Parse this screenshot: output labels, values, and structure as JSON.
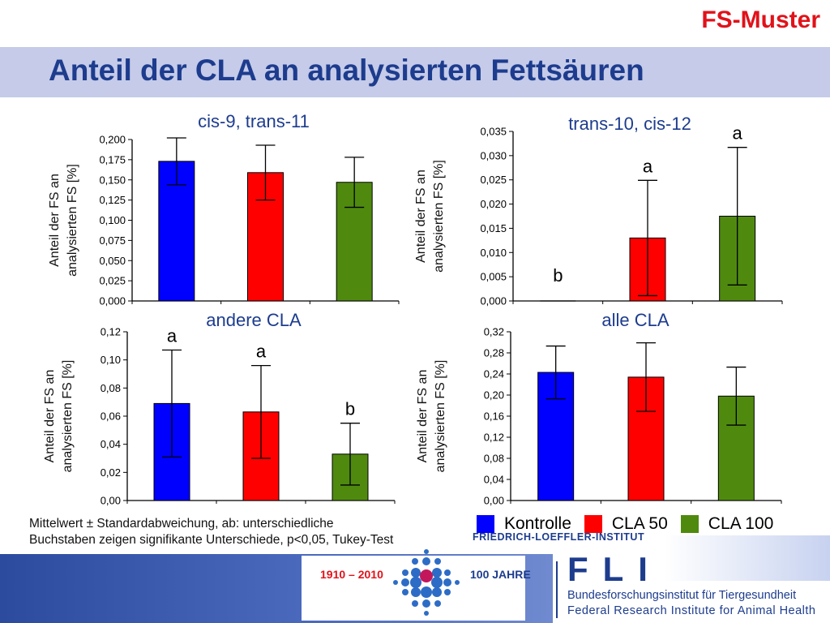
{
  "header": {
    "tag": "FS-Muster",
    "title": "Anteil der CLA an analysierten Fettsäuren"
  },
  "colors": {
    "Kontrolle": "#0000ff",
    "CLA 50": "#ff0000",
    "CLA 100": "#4f8a0f",
    "title_band": "#c5cbe8",
    "title_text": "#1d3c8e",
    "accent_red": "#e1121a"
  },
  "chart_data": [
    {
      "type": "bar",
      "title": "cis-9, trans-11",
      "ylabel_line1": "Anteil der FS an",
      "ylabel_line2": "analysierten FS [%]",
      "ylim": [
        0,
        0.2
      ],
      "ticks": [
        "0,000",
        "0,025",
        "0,050",
        "0,075",
        "0,100",
        "0,125",
        "0,150",
        "0,175",
        "0,200"
      ],
      "tick_values": [
        0,
        0.025,
        0.05,
        0.075,
        0.1,
        0.125,
        0.15,
        0.175,
        0.2
      ],
      "categories": [
        "Kontrolle",
        "CLA 50",
        "CLA 100"
      ],
      "values": [
        0.173,
        0.159,
        0.147
      ],
      "errors": [
        0.029,
        0.034,
        0.031
      ],
      "letters": [
        "",
        "",
        ""
      ]
    },
    {
      "type": "bar",
      "title": "trans-10, cis-12",
      "ylabel_line1": "Anteil der FS an",
      "ylabel_line2": "analysierten FS [%]",
      "ylim": [
        0,
        0.035
      ],
      "ticks": [
        "0,000",
        "0,005",
        "0,010",
        "0,015",
        "0,020",
        "0,025",
        "0,030",
        "0,035"
      ],
      "tick_values": [
        0,
        0.005,
        0.01,
        0.015,
        0.02,
        0.025,
        0.03,
        0.035
      ],
      "categories": [
        "Kontrolle",
        "CLA 50",
        "CLA 100"
      ],
      "values": [
        0.0,
        0.013,
        0.0175
      ],
      "errors": [
        0.0,
        0.0119,
        0.0142
      ],
      "letters": [
        "b",
        "a",
        "a"
      ]
    },
    {
      "type": "bar",
      "title": "andere CLA",
      "ylabel_line1": "Anteil der FS an",
      "ylabel_line2": "analysierten FS [%]",
      "ylim": [
        0,
        0.12
      ],
      "ticks": [
        "0,00",
        "0,02",
        "0,04",
        "0,06",
        "0,08",
        "0,10",
        "0,12"
      ],
      "tick_values": [
        0,
        0.02,
        0.04,
        0.06,
        0.08,
        0.1,
        0.12
      ],
      "categories": [
        "Kontrolle",
        "CLA 50",
        "CLA 100"
      ],
      "values": [
        0.069,
        0.063,
        0.033
      ],
      "errors": [
        0.038,
        0.033,
        0.022
      ],
      "letters": [
        "a",
        "a",
        "b"
      ]
    },
    {
      "type": "bar",
      "title": "alle CLA",
      "ylabel_line1": "Anteil der FS an",
      "ylabel_line2": "analysierten FS [%]",
      "ylim": [
        0,
        0.32
      ],
      "ticks": [
        "0,00",
        "0,04",
        "0,08",
        "0,12",
        "0,16",
        "0,20",
        "0,24",
        "0,28",
        "0,32"
      ],
      "tick_values": [
        0,
        0.04,
        0.08,
        0.12,
        0.16,
        0.2,
        0.24,
        0.28,
        0.32
      ],
      "categories": [
        "Kontrolle",
        "CLA 50",
        "CLA 100"
      ],
      "values": [
        0.243,
        0.234,
        0.198
      ],
      "errors": [
        0.05,
        0.065,
        0.055
      ],
      "letters": [
        "",
        "",
        ""
      ]
    }
  ],
  "note": {
    "line1": "Mittelwert ± Standardabweichung, ab: unterschiedliche",
    "line2": "Buchstaben zeigen signifikante Unterschiede, p<0,05, Tukey-Test"
  },
  "legend": [
    {
      "label": "Kontrolle",
      "color": "#0000ff"
    },
    {
      "label": "CLA 50",
      "color": "#ff0000"
    },
    {
      "label": "CLA 100",
      "color": "#4f8a0f"
    }
  ],
  "footer": {
    "institute": "FRIEDRICH-LOEFFLER-INSTITUT",
    "years": "1910 – 2010",
    "anniversary": "100 JAHRE",
    "logo": "FLI",
    "line1": "Bundesforschungsinstitut für Tiergesundheit",
    "line2": "Federal Research Institute for Animal Health"
  }
}
